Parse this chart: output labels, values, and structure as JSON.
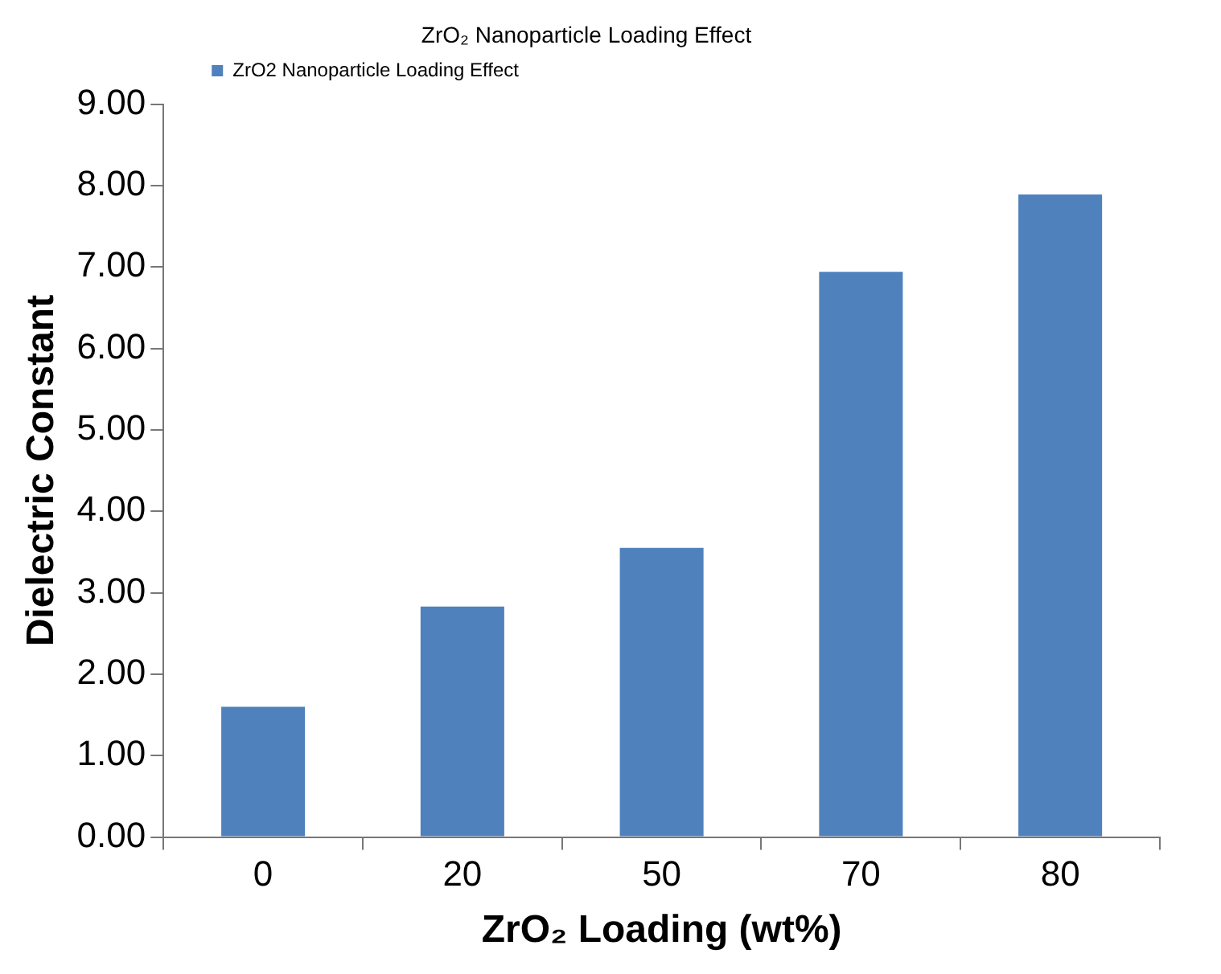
{
  "chart_data": {
    "type": "bar",
    "title": "ZrO₂ Nanoparticle Loading Effect",
    "xlabel": "ZrO₂ Loading (wt%)",
    "ylabel": "Dielectric Constant",
    "categories": [
      "0",
      "20",
      "50",
      "70",
      "80"
    ],
    "series": [
      {
        "name": "ZrO2 Nanoparticle Loading Effect",
        "color": "#4f81bd",
        "values": [
          1.6,
          2.83,
          3.55,
          6.94,
          7.89
        ]
      }
    ],
    "ylim": [
      0,
      9
    ],
    "yticks": [
      {
        "value": 0,
        "label": "0.00"
      },
      {
        "value": 1,
        "label": "1.00"
      },
      {
        "value": 2,
        "label": "2.00"
      },
      {
        "value": 3,
        "label": "3.00"
      },
      {
        "value": 4,
        "label": "4.00"
      },
      {
        "value": 5,
        "label": "5.00"
      },
      {
        "value": 6,
        "label": "6.00"
      },
      {
        "value": 7,
        "label": "7.00"
      },
      {
        "value": 8,
        "label": "8.00"
      },
      {
        "value": 9,
        "label": "9.00"
      }
    ],
    "grid": false,
    "legend": "top left"
  }
}
